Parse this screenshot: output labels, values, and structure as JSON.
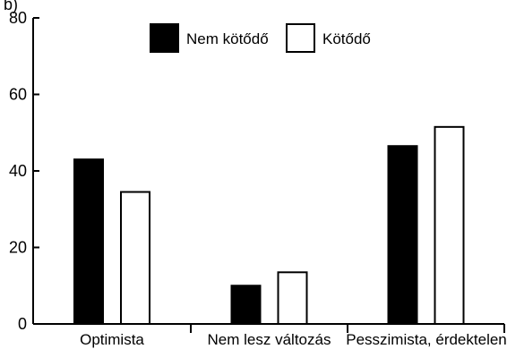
{
  "chart_data": {
    "type": "bar",
    "corner_label": "b)",
    "categories": [
      "Optimista",
      "Nem lesz változás",
      "Pesszimista, érdektelen"
    ],
    "series": [
      {
        "name": "Nem kötődő",
        "values": [
          43,
          10,
          46.5
        ],
        "fill": "#000000"
      },
      {
        "name": "Kötődő",
        "values": [
          34.5,
          13.5,
          51.5
        ],
        "fill": "#ffffff"
      }
    ],
    "ylim": [
      0,
      80
    ],
    "yticks": [
      0,
      20,
      40,
      60,
      80
    ],
    "ytick_labels": [
      "0",
      "20",
      "40",
      "60",
      "80"
    ],
    "xlabel": "",
    "ylabel": "",
    "grid": false,
    "legend_position": "top-center"
  }
}
